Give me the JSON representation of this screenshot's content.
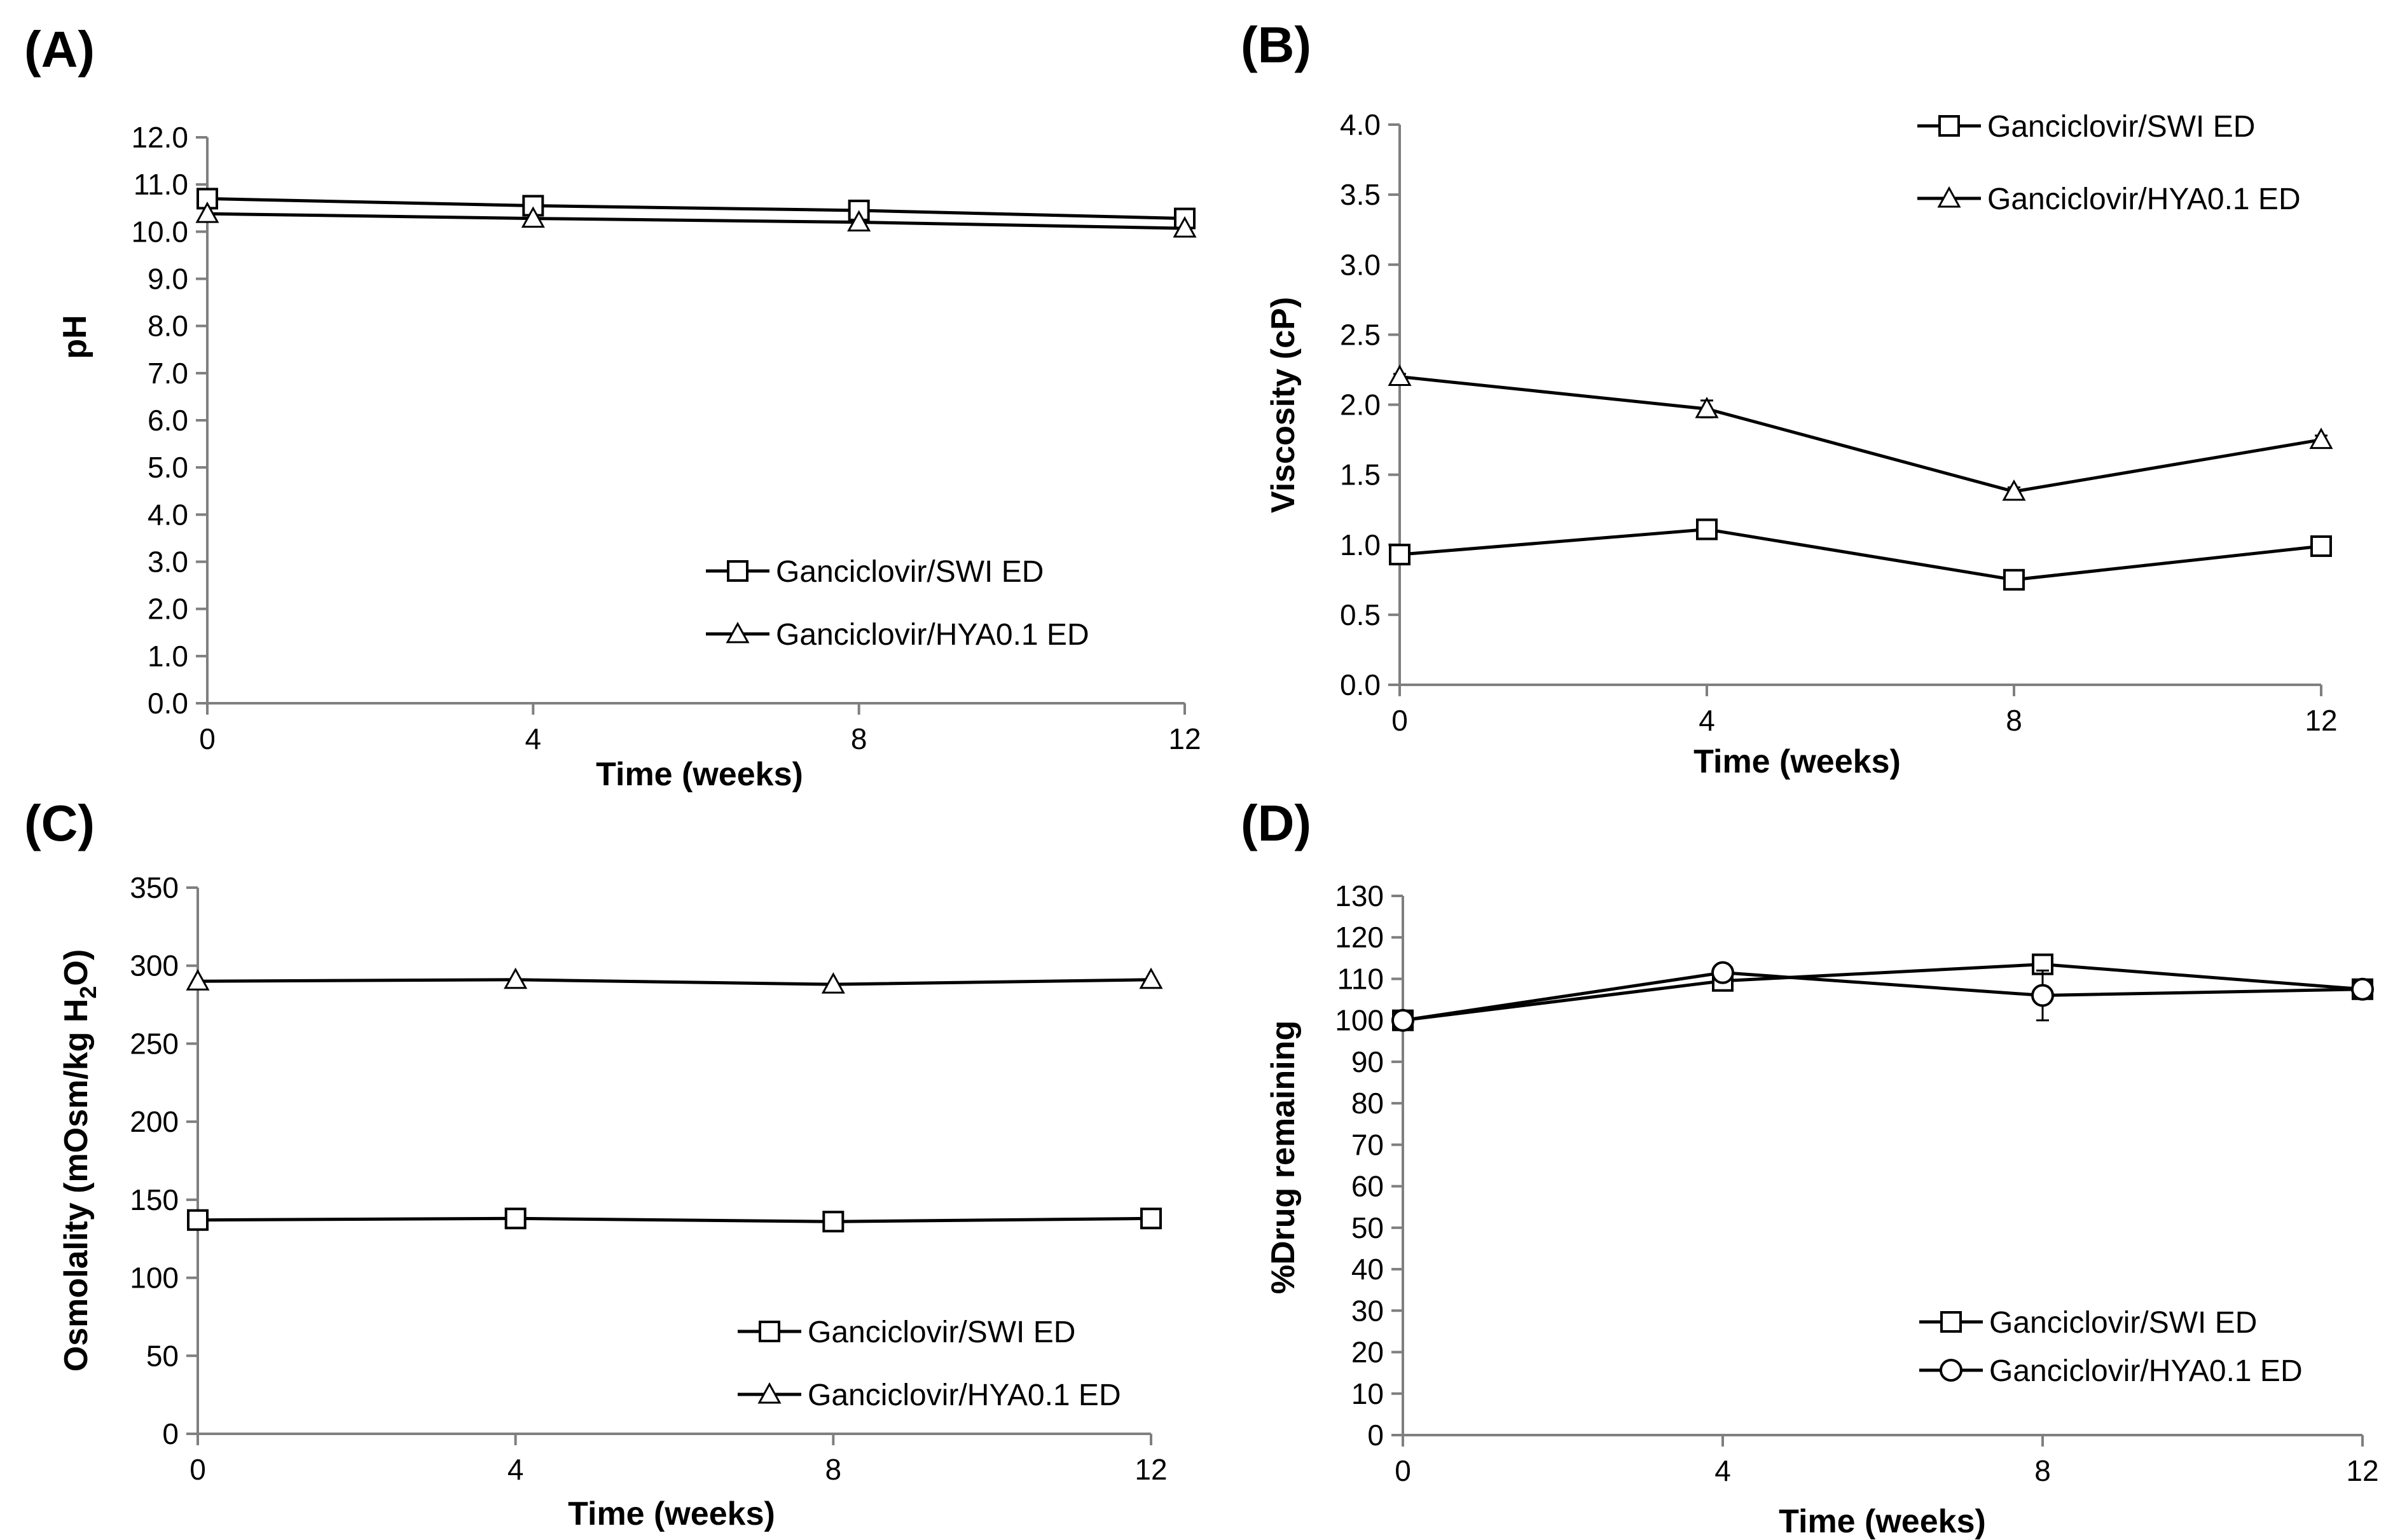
{
  "chart_data": [
    {
      "panel_label": "(A)",
      "type": "line",
      "title": "",
      "xlabel": "Time (weeks)",
      "ylabel": "pH",
      "x": [
        0,
        4,
        8,
        12
      ],
      "xticks": [
        "0",
        "4",
        "8",
        "12"
      ],
      "xlim": [
        0,
        12
      ],
      "ylim": [
        0,
        12
      ],
      "yticks": [
        "0.0",
        "1.0",
        "2.0",
        "3.0",
        "4.0",
        "5.0",
        "6.0",
        "7.0",
        "8.0",
        "9.0",
        "10.0",
        "11.0",
        "12.0"
      ],
      "grid": false,
      "legend_position": "bottom-right",
      "series": [
        {
          "name": "Ganciclovir/SWI ED",
          "marker": "square",
          "values": [
            10.7,
            10.55,
            10.45,
            10.28
          ],
          "errors": [
            0,
            0,
            0,
            0
          ]
        },
        {
          "name": "Ganciclovir/HYA0.1 ED",
          "marker": "triangle",
          "values": [
            10.38,
            10.28,
            10.2,
            10.07
          ],
          "errors": [
            0,
            0,
            0,
            0
          ]
        }
      ]
    },
    {
      "panel_label": "(B)",
      "type": "line",
      "title": "",
      "xlabel": "Time (weeks)",
      "ylabel": "Viscosity (cP)",
      "x": [
        0,
        4,
        8,
        12
      ],
      "xticks": [
        "0",
        "4",
        "8",
        "12"
      ],
      "xlim": [
        0,
        12
      ],
      "ylim": [
        0,
        4
      ],
      "yticks": [
        "0.0",
        "0.5",
        "1.0",
        "1.5",
        "2.0",
        "2.5",
        "3.0",
        "3.5",
        "4.0"
      ],
      "grid": false,
      "legend_position": "top-right",
      "series": [
        {
          "name": "Ganciclovir/SWI ED",
          "marker": "square",
          "values": [
            0.93,
            1.11,
            0.75,
            0.99
          ],
          "errors": [
            0.02,
            0.07,
            0.06,
            0.03
          ]
        },
        {
          "name": "Ganciclovir/HYA0.1 ED",
          "marker": "triangle",
          "values": [
            2.2,
            1.97,
            1.38,
            1.75
          ],
          "errors": [
            0.02,
            0.06,
            0.03,
            0.03
          ]
        }
      ]
    },
    {
      "panel_label": "(C)",
      "type": "line",
      "title": "",
      "xlabel": "Time (weeks)",
      "ylabel": "Osmolality (mOsm/kg H",
      "ylabel_sub": "2",
      "ylabel_end": "O)",
      "x": [
        0,
        4,
        8,
        12
      ],
      "xticks": [
        "0",
        "4",
        "8",
        "12"
      ],
      "xlim": [
        0,
        12
      ],
      "ylim": [
        0,
        350
      ],
      "yticks": [
        "0",
        "50",
        "100",
        "150",
        "200",
        "250",
        "300",
        "350"
      ],
      "grid": false,
      "legend_position": "bottom-right",
      "series": [
        {
          "name": "Ganciclovir/SWI ED",
          "marker": "square",
          "values": [
            137,
            138,
            136,
            138
          ],
          "errors": [
            0,
            0,
            0,
            0
          ]
        },
        {
          "name": "Ganciclovir/HYA0.1 ED",
          "marker": "triangle",
          "values": [
            290,
            291,
            288,
            291
          ],
          "errors": [
            0,
            0,
            0,
            0
          ]
        }
      ]
    },
    {
      "panel_label": "(D)",
      "type": "line",
      "title": "",
      "xlabel": "Time (weeks)",
      "ylabel": "%Drug remaining",
      "x": [
        0,
        4,
        8,
        12
      ],
      "xticks": [
        "0",
        "4",
        "8",
        "12"
      ],
      "xlim": [
        0,
        12
      ],
      "ylim": [
        0,
        130
      ],
      "yticks": [
        "0",
        "10",
        "20",
        "30",
        "40",
        "50",
        "60",
        "70",
        "80",
        "90",
        "100",
        "110",
        "120",
        "130"
      ],
      "grid": false,
      "legend_position": "bottom-right",
      "series": [
        {
          "name": "Ganciclovir/SWI ED",
          "marker": "square",
          "values": [
            100,
            109.5,
            113.5,
            107.5
          ],
          "errors": [
            0,
            1.5,
            1.5,
            1
          ]
        },
        {
          "name": "Ganciclovir/HYA0.1 ED",
          "marker": "circle",
          "values": [
            100,
            111.5,
            106,
            107.5
          ],
          "errors": [
            0,
            1.5,
            6,
            1
          ]
        }
      ]
    }
  ]
}
